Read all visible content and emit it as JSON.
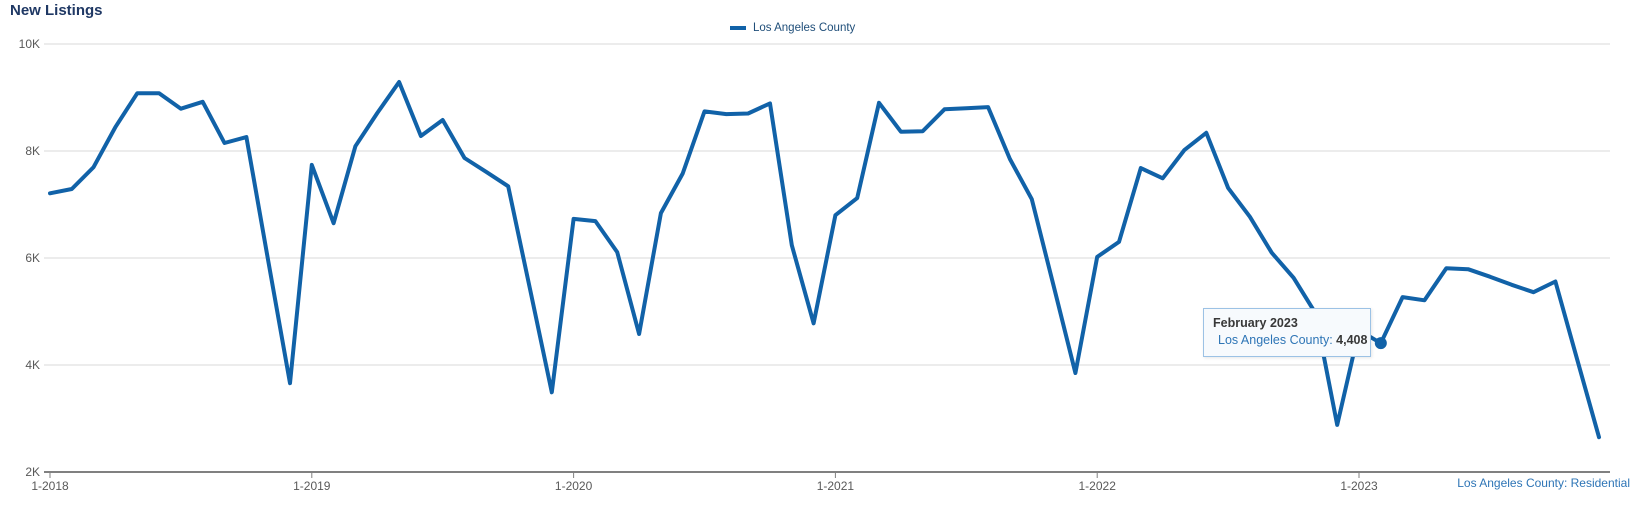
{
  "page": {
    "title": "New Listings",
    "footer_note": "Los Angeles County: Residential"
  },
  "legend": {
    "series_label": "Los Angeles County"
  },
  "tooltip": {
    "title": "February 2023",
    "series_label": "Los Angeles County:",
    "value": "4,408"
  },
  "colors": {
    "line": "#1162A8",
    "gridline": "#D9D9D9",
    "axis_line": "#808080",
    "axis_text": "#595959",
    "title_text": "#1F3864",
    "legend_text": "#1F4E79",
    "tooltip_border": "#9CC2E5",
    "tooltip_bg": "#F7FAFD",
    "tooltip_accent_text": "#2E75B6"
  },
  "chart_data": {
    "type": "line",
    "title": "New Listings",
    "xlabel": "",
    "ylabel": "",
    "start_month": "2018-01",
    "months_per_point": 1,
    "ylim": [
      2000,
      10000
    ],
    "grid": true,
    "legend_position": "top-center",
    "yticks": [
      {
        "label": "10K",
        "value": 10000
      },
      {
        "label": "8K",
        "value": 8000
      },
      {
        "label": "6K",
        "value": 6000
      },
      {
        "label": "4K",
        "value": 4000
      },
      {
        "label": "2K",
        "value": 2000
      }
    ],
    "xticks": [
      {
        "label": "1-2018",
        "index": 0
      },
      {
        "label": "1-2019",
        "index": 12
      },
      {
        "label": "1-2020",
        "index": 24
      },
      {
        "label": "1-2021",
        "index": 36
      },
      {
        "label": "1-2022",
        "index": 48
      },
      {
        "label": "1-2023",
        "index": 60
      }
    ],
    "series": [
      {
        "name": "Los Angeles County",
        "values": [
          7210,
          7290,
          7700,
          8450,
          9080,
          9080,
          8790,
          8920,
          8150,
          8260,
          5950,
          3660,
          7740,
          6650,
          8090,
          8710,
          9290,
          8280,
          8580,
          7870,
          7610,
          7340,
          5420,
          3490,
          6730,
          6690,
          6110,
          4580,
          6840,
          7580,
          8740,
          8690,
          8700,
          8890,
          6240,
          4780,
          6800,
          7120,
          8900,
          8360,
          8370,
          8780,
          8800,
          8820,
          7850,
          7100,
          5480,
          3850,
          6020,
          6300,
          7680,
          7490,
          8020,
          8340,
          7310,
          6770,
          6100,
          5630,
          4970,
          2880,
          4650,
          4408,
          5270,
          5210,
          5810,
          5790,
          5650,
          5500,
          5360,
          5560,
          4100,
          2650
        ]
      }
    ],
    "highlight": {
      "month": "2023-02",
      "index": 61,
      "value": 4408
    }
  }
}
